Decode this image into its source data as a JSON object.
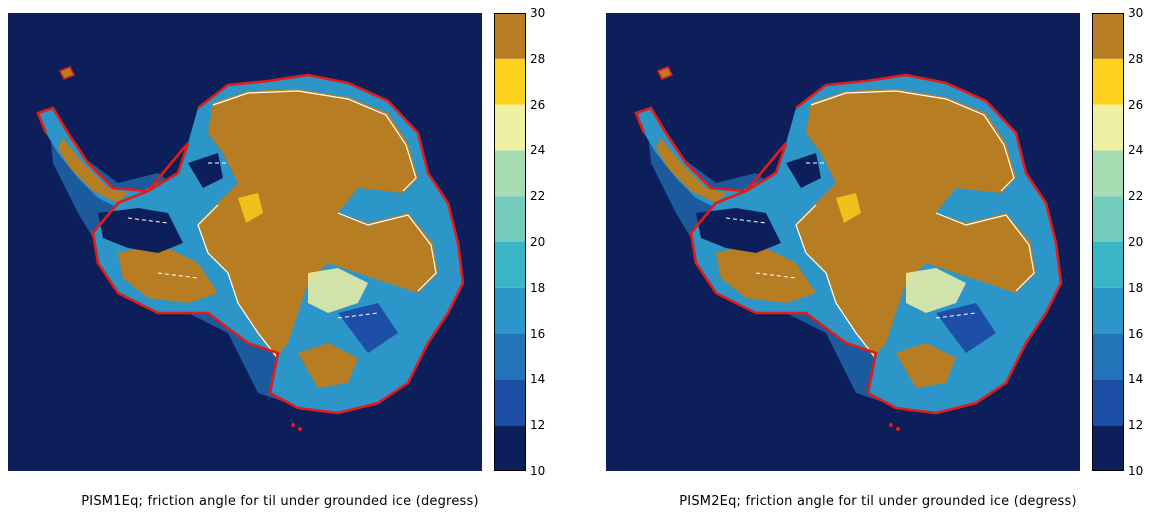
{
  "panels": [
    {
      "caption": "PISM1Eq; friction angle for til under grounded ice (degress)"
    },
    {
      "caption": "PISM2Eq; friction angle for til under grounded ice (degress)"
    }
  ],
  "colorbar": {
    "ticks": [
      "10",
      "12",
      "14",
      "16",
      "18",
      "20",
      "22",
      "24",
      "26",
      "28",
      "30"
    ],
    "colors": [
      "#0c1f5a",
      "#1e4fa6",
      "#2273b8",
      "#2b96c7",
      "#38b5c6",
      "#72cbbb",
      "#a7dcb2",
      "#eff0a4",
      "#fcd21c",
      "#b77d22"
    ]
  },
  "palette": {
    "background": "#0c1f5a",
    "high": "#b77d22",
    "coastline": "#e21b1b",
    "contour": "#ffffff"
  }
}
